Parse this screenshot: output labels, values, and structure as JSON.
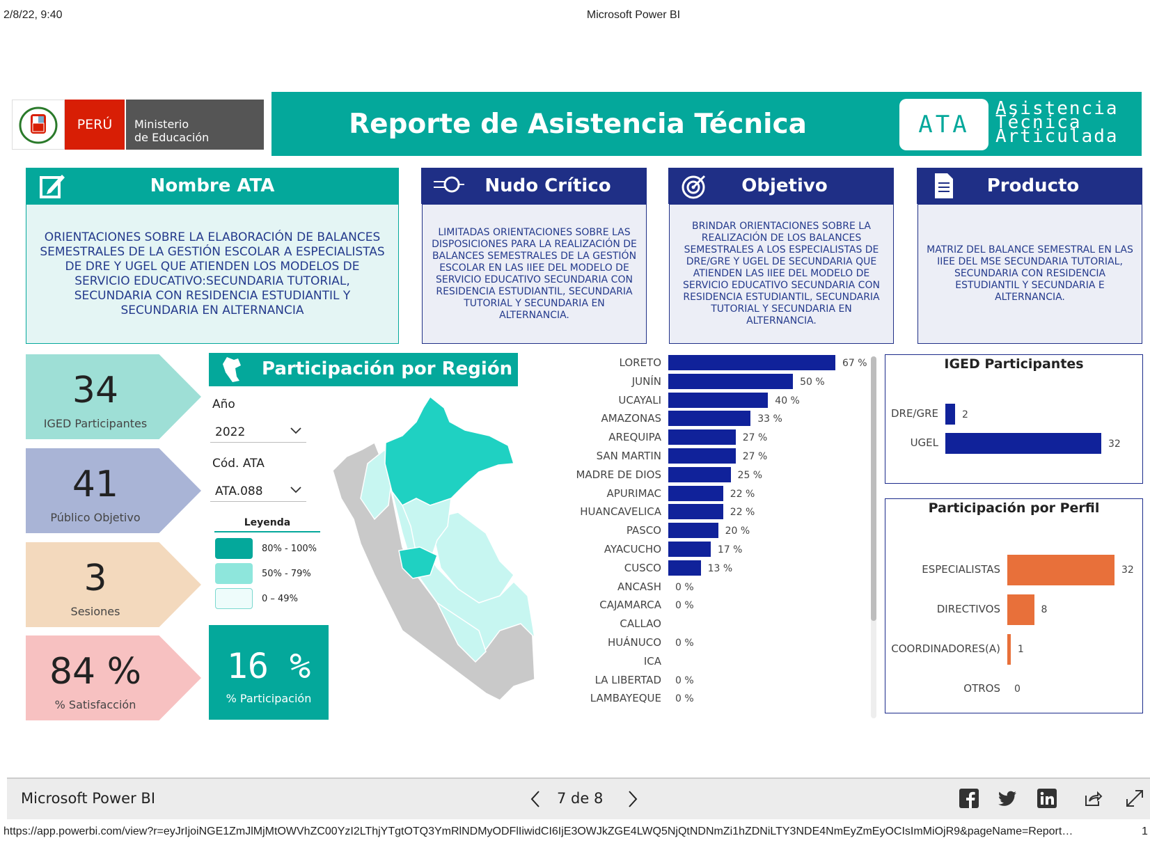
{
  "print_header": {
    "timestamp": "2/8/22, 9:40",
    "window_title": "Microsoft Power BI"
  },
  "logo": {
    "country": "PERÚ",
    "ministry_line1": "Ministerio",
    "ministry_line2": "de Educación"
  },
  "banner": {
    "title": "Reporte de Asistencia Técnica",
    "badge": "ATA",
    "words": [
      "Asistencia",
      "Técnica",
      "Articulada"
    ]
  },
  "cards": {
    "nombre": {
      "title": "Nombre ATA",
      "text": "ORIENTACIONES SOBRE LA ELABORACIÓN DE BALANCES SEMESTRALES DE LA GESTIÓN ESCOLAR A ESPECIALISTAS DE DRE Y UGEL QUE ATIENDEN LOS MODELOS DE SERVICIO EDUCATIVO:SECUNDARIA TUTORIAL, SECUNDARIA CON RESIDENCIA ESTUDIANTIL Y SECUNDARIA EN ALTERNANCIA"
    },
    "nudo": {
      "title": "Nudo Crítico",
      "text": "LIMITADAS ORIENTACIONES SOBRE LAS DISPOSICIONES PARA LA REALIZACIÓN DE BALANCES SEMESTRALES DE LA GESTIÓN ESCOLAR EN LAS IIEE DEL MODELO DE SERVICIO EDUCATIVO SECUNDARIA CON RESIDENCIA ESTUDIANTIL, SECUNDARIA TUTORIAL Y SECUNDARIA EN ALTERNANCIA."
    },
    "objetivo": {
      "title": "Objetivo",
      "text": "BRINDAR ORIENTACIONES SOBRE LA REALIZACIÓN DE LOS BALANCES SEMESTRALES A LOS ESPECIALISTAS DE DRE/GRE Y UGEL DE SECUNDARIA QUE ATIENDEN LAS IIEE DEL MODELO DE SERVICIO EDUCATIVO SECUNDARIA CON RESIDENCIA ESTUDIANTIL, SECUNDARIA TUTORIAL Y SECUNDARIA EN ALTERNANCIA."
    },
    "producto": {
      "title": "Producto",
      "text": "MATRIZ DEL BALANCE SEMESTRAL EN LAS IIEE DEL MSE SECUNDARIA TUTORIAL, SECUNDARIA CON RESIDENCIA ESTUDIANTIL Y SECUNDARIA E ALTERNANCIA."
    }
  },
  "kpis": [
    {
      "value": "34",
      "label": "IGED Participantes",
      "color": "#9edfd6"
    },
    {
      "value": "41",
      "label": "Público Objetivo",
      "color": "#a9b4d6"
    },
    {
      "value": "3",
      "label": "Sesiones",
      "color": "#f3d9bd"
    },
    {
      "value": "84 %",
      "label": "% Satisfacción",
      "color": "#f7c1c1"
    }
  ],
  "region": {
    "title": "Participación por Región",
    "year_label": "Año",
    "year_value": "2022",
    "code_label": "Cód. ATA",
    "code_value": "ATA.088",
    "legend_title": "Leyenda",
    "legend": [
      {
        "label": "80% - 100%",
        "color": "#04a89b"
      },
      {
        "label": "50% - 79%",
        "color": "#8ee6dc"
      },
      {
        "label": "0 – 49%",
        "color": "#eefcfb"
      }
    ],
    "participation_value": "16 %",
    "participation_label": "% Participación"
  },
  "chart_data": [
    {
      "type": "bar",
      "orientation": "horizontal",
      "categories": [
        "LORETO",
        "JUNÍN",
        "UCAYALI",
        "AMAZONAS",
        "AREQUIPA",
        "SAN MARTIN",
        "MADRE DE DIOS",
        "APURIMAC",
        "HUANCAVELICA",
        "PASCO",
        "AYACUCHO",
        "CUSCO",
        "ANCASH",
        "CAJAMARCA",
        "CALLAO",
        "HUÁNUCO",
        "ICA",
        "LA LIBERTAD",
        "LAMBAYEQUE"
      ],
      "values": [
        67,
        50,
        40,
        33,
        27,
        27,
        25,
        22,
        22,
        20,
        17,
        13,
        0,
        0,
        null,
        0,
        null,
        0,
        0
      ],
      "value_labels": [
        "67 %",
        "50 %",
        "40 %",
        "33 %",
        "27 %",
        "27 %",
        "25 %",
        "22 %",
        "22 %",
        "20 %",
        "17 %",
        "13 %",
        "0 %",
        "0 %",
        "",
        "0 %",
        "",
        "0 %",
        "0 %"
      ],
      "color": "#10229a"
    },
    {
      "type": "bar",
      "orientation": "horizontal",
      "title": "IGED Participantes",
      "categories": [
        "DRE/GRE",
        "UGEL"
      ],
      "values": [
        2,
        32
      ],
      "color": "#10229a"
    },
    {
      "type": "bar",
      "orientation": "horizontal",
      "title": "Participación por Perfil",
      "categories": [
        "ESPECIALISTAS",
        "DIRECTIVOS",
        "COORDINADORES(A)",
        "OTROS"
      ],
      "values": [
        32,
        8,
        1,
        0
      ],
      "color": "#e8703a"
    }
  ],
  "footer": {
    "brand": "Microsoft Power BI",
    "page": "7 de 8"
  },
  "url": "https://app.powerbi.com/view?r=eyJrIjoiNGE1ZmJlMjMtOWVhZC00YzI2LThjYTgtOTQ3YmRlNDMyODFlIiwidCI6IjE3OWJkZGE4LWQ5NjQtNDNmZi1hZDNiLTY3NDE4NmEyZmEyOCIsImMiOjR9&pageName=Report…",
  "page_num": "1"
}
